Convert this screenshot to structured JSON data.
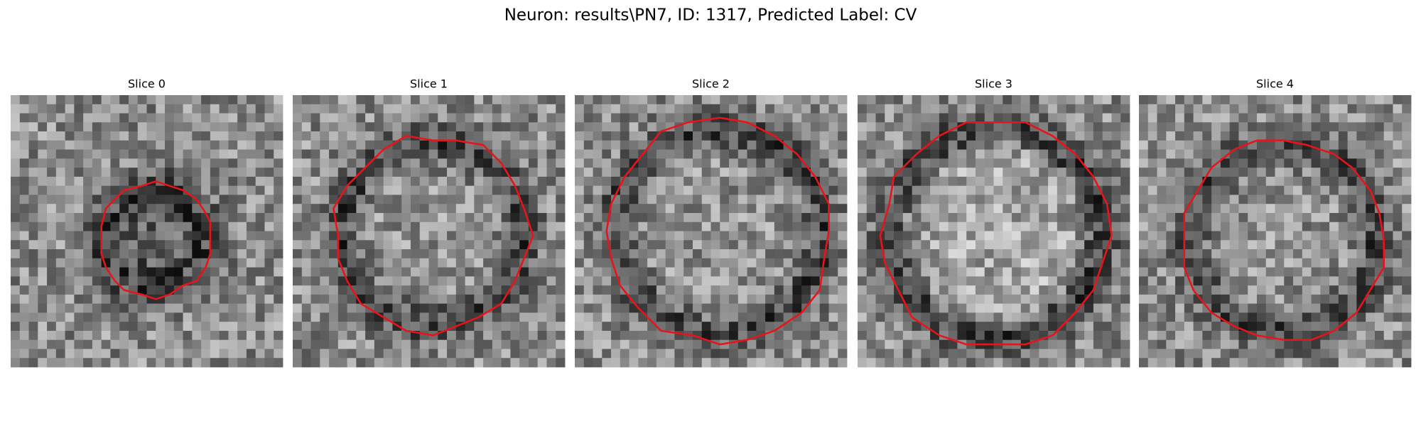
{
  "title": "Neuron: results\\PN7, ID: 1317, Predicted Label: CV",
  "panels": [
    {
      "title": "Slice 0"
    },
    {
      "title": "Slice 1"
    },
    {
      "title": "Slice 2"
    },
    {
      "title": "Slice 3"
    },
    {
      "title": "Slice 4"
    }
  ]
}
